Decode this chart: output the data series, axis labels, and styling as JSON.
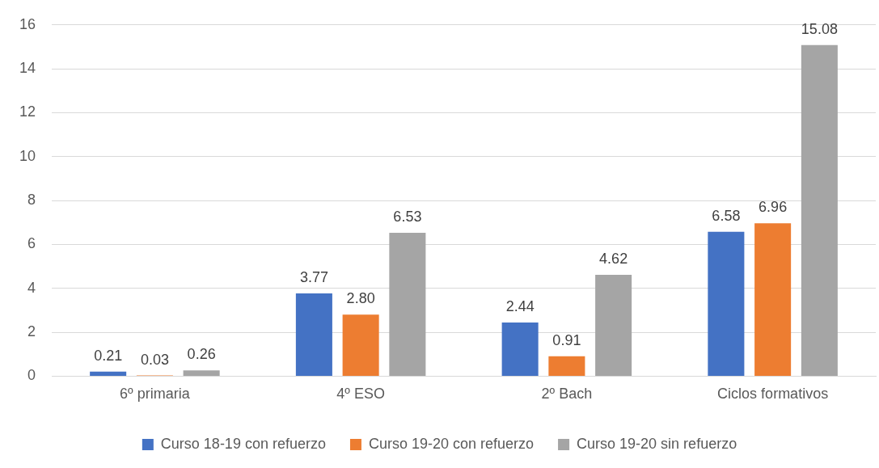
{
  "chart_data": {
    "type": "bar",
    "categories": [
      "6º primaria",
      "4º ESO",
      "2º Bach",
      "Ciclos formativos"
    ],
    "series": [
      {
        "name": "Curso 18-19 con refuerzo",
        "color": "#4472c4",
        "values": [
          0.21,
          3.77,
          2.44,
          6.58
        ],
        "value_labels": [
          "0.21",
          "3.77",
          "2.44",
          "6.58"
        ]
      },
      {
        "name": "Curso 19-20 con refuerzo",
        "color": "#ed7d31",
        "values": [
          0.03,
          2.8,
          0.91,
          6.96
        ],
        "value_labels": [
          "0.03",
          "2.80",
          "0.91",
          "6.96"
        ]
      },
      {
        "name": "Curso 19-20 sin refuerzo",
        "color": "#a5a5a5",
        "values": [
          0.26,
          6.53,
          4.62,
          15.08
        ],
        "value_labels": [
          "0.26",
          "6.53",
          "4.62",
          "15.08"
        ]
      }
    ],
    "ylim": [
      0,
      16
    ],
    "yticks": [
      0,
      2,
      4,
      6,
      8,
      10,
      12,
      14,
      16
    ],
    "grid": "y",
    "legend": "bottom"
  }
}
